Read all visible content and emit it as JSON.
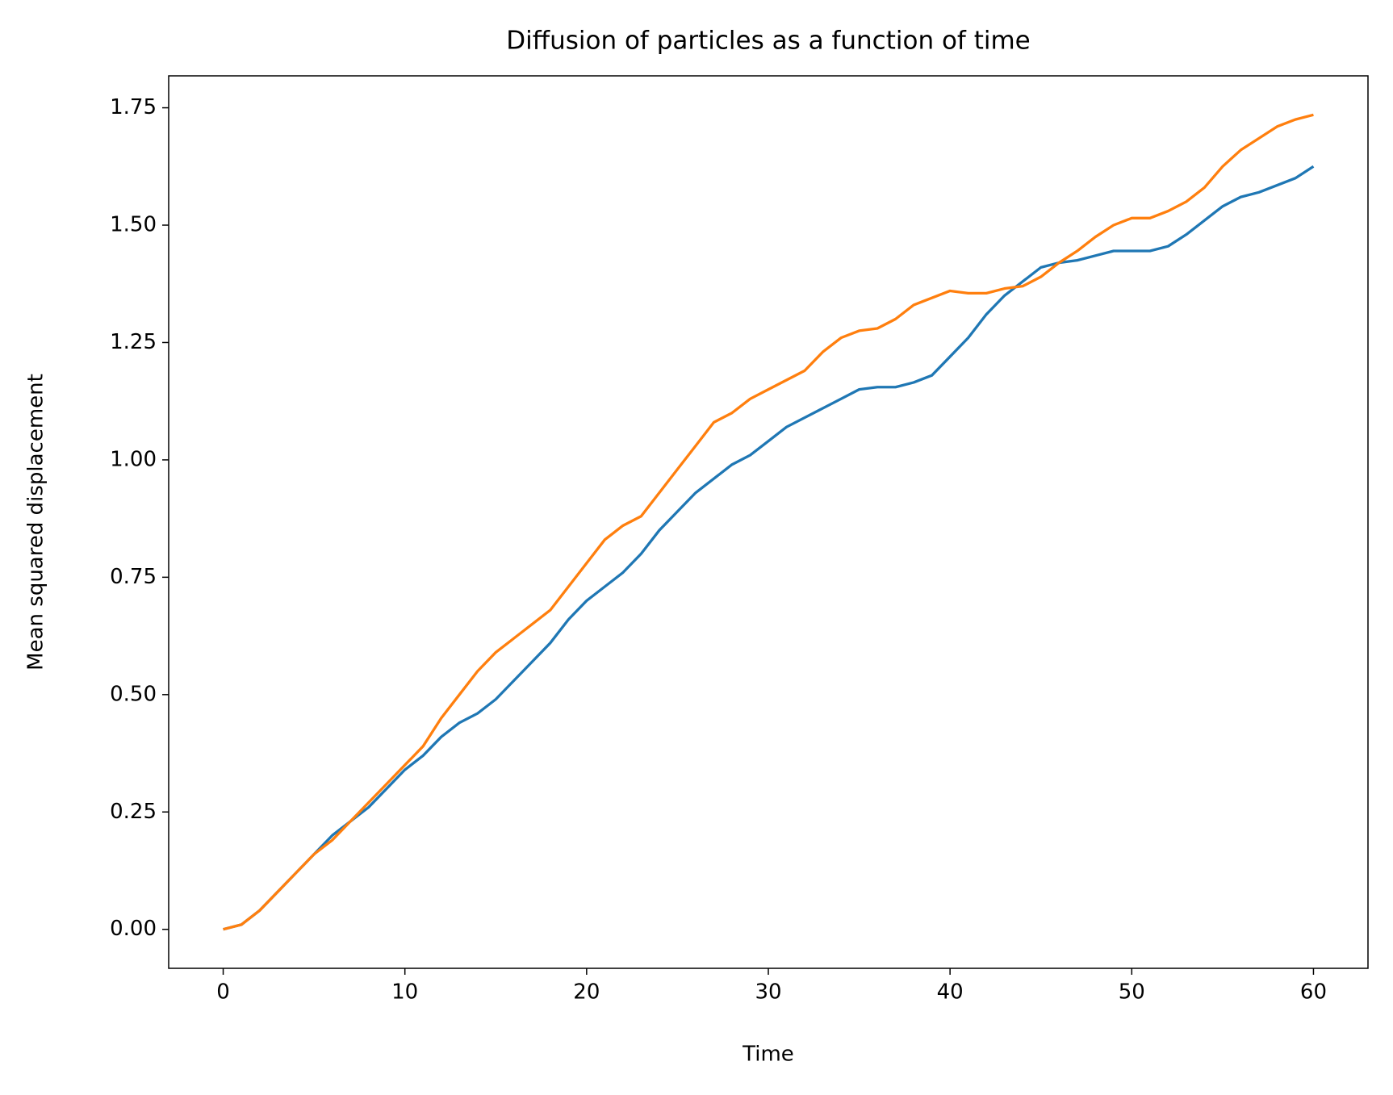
{
  "chart_data": {
    "type": "line",
    "title": "Diffusion of particles as a function of time",
    "xlabel": "Time",
    "ylabel": "Mean squared displacement",
    "x": [
      0,
      1,
      2,
      3,
      4,
      5,
      6,
      7,
      8,
      9,
      10,
      11,
      12,
      13,
      14,
      15,
      16,
      17,
      18,
      19,
      20,
      21,
      22,
      23,
      24,
      25,
      26,
      27,
      28,
      29,
      30,
      31,
      32,
      33,
      34,
      35,
      36,
      37,
      38,
      39,
      40,
      41,
      42,
      43,
      44,
      45,
      46,
      47,
      48,
      49,
      50,
      51,
      52,
      53,
      54,
      55,
      56,
      57,
      58,
      59,
      60
    ],
    "series": [
      {
        "color": "#1f77b4",
        "values": [
          0,
          0.01,
          0.04,
          0.08,
          0.12,
          0.16,
          0.2,
          0.23,
          0.26,
          0.3,
          0.34,
          0.37,
          0.41,
          0.44,
          0.46,
          0.49,
          0.53,
          0.57,
          0.61,
          0.66,
          0.7,
          0.73,
          0.76,
          0.8,
          0.85,
          0.89,
          0.93,
          0.96,
          0.99,
          1.01,
          1.04,
          1.07,
          1.09,
          1.11,
          1.13,
          1.15,
          1.155,
          1.155,
          1.165,
          1.18,
          1.22,
          1.26,
          1.31,
          1.35,
          1.38,
          1.41,
          1.42,
          1.425,
          1.435,
          1.445,
          1.445,
          1.445,
          1.455,
          1.48,
          1.51,
          1.54,
          1.56,
          1.57,
          1.585,
          1.6,
          1.625
        ]
      },
      {
        "color": "#ff7f0e",
        "values": [
          0,
          0.01,
          0.04,
          0.08,
          0.12,
          0.16,
          0.19,
          0.23,
          0.27,
          0.31,
          0.35,
          0.39,
          0.45,
          0.5,
          0.55,
          0.59,
          0.62,
          0.65,
          0.68,
          0.73,
          0.78,
          0.83,
          0.86,
          0.88,
          0.93,
          0.98,
          1.03,
          1.08,
          1.1,
          1.13,
          1.15,
          1.17,
          1.19,
          1.23,
          1.26,
          1.275,
          1.28,
          1.3,
          1.33,
          1.345,
          1.36,
          1.355,
          1.355,
          1.365,
          1.37,
          1.39,
          1.42,
          1.445,
          1.475,
          1.5,
          1.515,
          1.515,
          1.53,
          1.55,
          1.58,
          1.625,
          1.66,
          1.685,
          1.71,
          1.725,
          1.735
        ]
      }
    ],
    "xlim": [
      -3,
      63
    ],
    "ylim": [
      -0.083,
      1.818
    ],
    "xticks": [
      0,
      10,
      20,
      30,
      40,
      50,
      60
    ],
    "yticks": [
      {
        "value": 0,
        "label": "0.00"
      },
      {
        "value": 0.25,
        "label": "0.25"
      },
      {
        "value": 0.5,
        "label": "0.50"
      },
      {
        "value": 0.75,
        "label": "0.75"
      },
      {
        "value": 1,
        "label": "1.00"
      },
      {
        "value": 1.25,
        "label": "1.25"
      },
      {
        "value": 1.5,
        "label": "1.50"
      },
      {
        "value": 1.75,
        "label": "1.75"
      }
    ],
    "grid": false
  }
}
